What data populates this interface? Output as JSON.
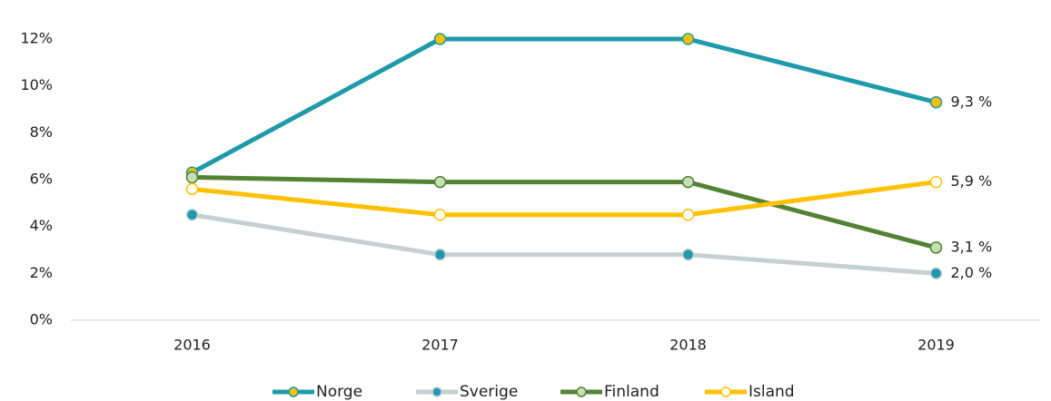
{
  "chart_data": {
    "type": "line",
    "categories": [
      "2016",
      "2017",
      "2018",
      "2019"
    ],
    "series": [
      {
        "name": "Norge",
        "color": "#1f9aaa",
        "marker_color": "#f5c000",
        "values": [
          6.3,
          12.0,
          12.0,
          9.3
        ],
        "value_labels": [
          null,
          null,
          null,
          "9,3 %"
        ]
      },
      {
        "name": "Sverige",
        "color": "#c5d0d3",
        "marker_color": "#1f9aaa",
        "values": [
          4.5,
          2.8,
          2.8,
          2.0
        ],
        "value_labels": [
          null,
          null,
          null,
          "2,0 %"
        ]
      },
      {
        "name": "Finland",
        "color": "#548235",
        "marker_color": "#c5e0b4",
        "values": [
          6.1,
          5.9,
          5.9,
          3.1
        ],
        "value_labels": [
          null,
          null,
          null,
          "3,1 %"
        ]
      },
      {
        "name": "Island",
        "color": "#ffc000",
        "marker_color": "#ffffff",
        "values": [
          5.6,
          4.5,
          4.5,
          5.9
        ],
        "value_labels": [
          null,
          null,
          null,
          "5,9 %"
        ]
      }
    ],
    "ylim": [
      0,
      12
    ],
    "yticks": [
      {
        "value": 0,
        "label": "0%"
      },
      {
        "value": 2,
        "label": "2%"
      },
      {
        "value": 4,
        "label": "4%"
      },
      {
        "value": 6,
        "label": "6%"
      },
      {
        "value": 8,
        "label": "8%"
      },
      {
        "value": 10,
        "label": "10%"
      },
      {
        "value": 12,
        "label": "12%"
      }
    ],
    "grid": false,
    "legend": "bottom"
  }
}
